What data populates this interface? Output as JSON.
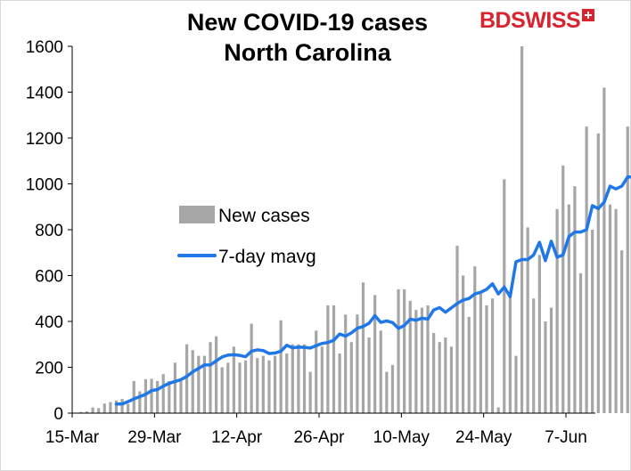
{
  "header": {
    "title_line1": "New COVID-19 cases",
    "title_line2": "North Carolina",
    "logo_text": "BDSWISS"
  },
  "colors": {
    "bars": "#a6a6a6",
    "line": "#1f77e8",
    "brand": "#d9232e"
  },
  "chart_data": {
    "type": "bar",
    "ylim": [
      0,
      1600
    ],
    "yticks": [
      0,
      200,
      400,
      600,
      800,
      1000,
      1200,
      1400,
      1600
    ],
    "xtick_labels": [
      "15-Mar",
      "29-Mar",
      "12-Apr",
      "26-Apr",
      "10-May",
      "24-May",
      "7-Jun"
    ],
    "x_start": "2020-03-15",
    "x_end": "2020-06-11",
    "grid": false,
    "legend_position": "center-left",
    "series": [
      {
        "name": "New cases",
        "type": "bar",
        "start_date": "2020-03-16",
        "values": [
          5,
          8,
          25,
          22,
          42,
          48,
          55,
          62,
          40,
          140,
          95,
          148,
          150,
          140,
          170,
          140,
          220,
          140,
          300,
          275,
          250,
          250,
          310,
          335,
          200,
          220,
          290,
          220,
          230,
          390,
          240,
          250,
          230,
          250,
          405,
          260,
          300,
          300,
          300,
          180,
          360,
          290,
          470,
          470,
          260,
          430,
          310,
          430,
          570,
          330,
          515,
          360,
          180,
          210,
          540,
          540,
          490,
          450,
          460,
          470,
          350,
          310,
          330,
          290,
          730,
          600,
          420,
          640,
          520,
          470,
          500,
          25,
          1020,
          515,
          250,
          1600,
          810,
          500,
          690,
          400,
          460,
          890,
          1080,
          910,
          990,
          610,
          1250,
          800,
          1220,
          1420,
          910,
          890,
          710,
          1250
        ]
      },
      {
        "name": "7-day mavg",
        "type": "line",
        "start_date": "2020-03-22",
        "values": [
          40,
          40,
          50,
          62,
          72,
          82,
          98,
          103,
          118,
          130,
          138,
          146,
          160,
          180,
          195,
          210,
          210,
          228,
          245,
          253,
          255,
          252,
          246,
          270,
          276,
          273,
          260,
          262,
          270,
          296,
          285,
          288,
          287,
          284,
          294,
          304,
          308,
          318,
          345,
          336,
          350,
          370,
          378,
          392,
          425,
          396,
          402,
          395,
          370,
          382,
          410,
          405,
          414,
          410,
          450,
          460,
          440,
          459,
          478,
          493,
          500,
          520,
          527,
          540,
          564,
          520,
          550,
          508,
          660,
          670,
          670,
          690,
          745,
          665,
          750,
          680,
          690,
          770,
          790,
          790,
          800,
          905,
          892,
          920,
          990,
          978,
          990,
          1030,
          1030
        ]
      }
    ]
  }
}
